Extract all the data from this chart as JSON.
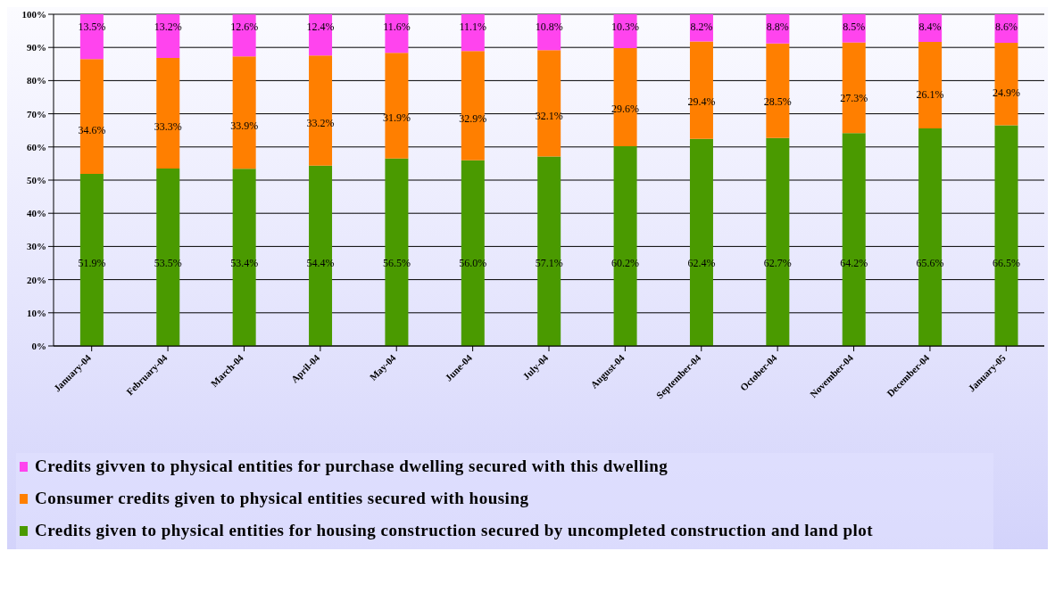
{
  "chart_data": {
    "type": "bar",
    "stacked": true,
    "categories": [
      "January-04",
      "February-04",
      "March-04",
      "April-04",
      "May-04",
      "June-04",
      "July-04",
      "August-04",
      "September-04",
      "October-04",
      "November-04",
      "December-04",
      "January-05"
    ],
    "series": [
      {
        "name": "Credits given to physical entities for housing construction secured by uncompleted construction and land plot",
        "color": "#4a9a00",
        "values": [
          51.9,
          53.5,
          53.4,
          54.4,
          56.5,
          56.0,
          57.1,
          60.2,
          62.4,
          62.7,
          64.2,
          65.6,
          66.5
        ],
        "value_labels": [
          "51.9%",
          "53.5%",
          "53.4%",
          "54.4%",
          "56.5%",
          "56.0%",
          "57.1%",
          "60.2%",
          "62.4%",
          "62.7%",
          "64.2%",
          "65.6%",
          "66.5%"
        ]
      },
      {
        "name": "Consumer credits given to physical entities secured with housing",
        "color": "#ff7f00",
        "values": [
          34.6,
          33.3,
          33.9,
          33.2,
          31.9,
          32.9,
          32.1,
          29.6,
          29.4,
          28.5,
          27.3,
          26.1,
          24.9
        ],
        "value_labels": [
          "34.6%",
          "33.3%",
          "33.9%",
          "33.2%",
          "31.9%",
          "32.9%",
          "32.1%",
          "29.6%",
          "29.4%",
          "28.5%",
          "27.3%",
          "26.1%",
          "24.9%"
        ]
      },
      {
        "name": "Credits givven to physical entities for purchase dwelling secured with this dwelling",
        "color": "#ff44ee",
        "values": [
          13.5,
          13.2,
          12.6,
          12.4,
          11.6,
          11.1,
          10.8,
          10.3,
          8.2,
          8.8,
          8.5,
          8.4,
          8.6
        ],
        "value_labels": [
          "13.5%",
          "13.2%",
          "12.6%",
          "12.4%",
          "11.6%",
          "11.1%",
          "10.8%",
          "10.3%",
          "8.2%",
          "8.8%",
          "8.5%",
          "8.4%",
          "8.6%"
        ]
      }
    ],
    "ylim": [
      0,
      100
    ],
    "yticks": [
      {
        "value": 0,
        "label": "0%"
      },
      {
        "value": 10,
        "label": "10%"
      },
      {
        "value": 20,
        "label": "20%"
      },
      {
        "value": 30,
        "label": "30%"
      },
      {
        "value": 40,
        "label": "40%"
      },
      {
        "value": 50,
        "label": "50%"
      },
      {
        "value": 60,
        "label": "60%"
      },
      {
        "value": 70,
        "label": "70%"
      },
      {
        "value": 80,
        "label": "80%"
      },
      {
        "value": 90,
        "label": "90%"
      },
      {
        "value": 100,
        "label": "100%"
      }
    ],
    "grid": "y",
    "legend": "bottom"
  }
}
